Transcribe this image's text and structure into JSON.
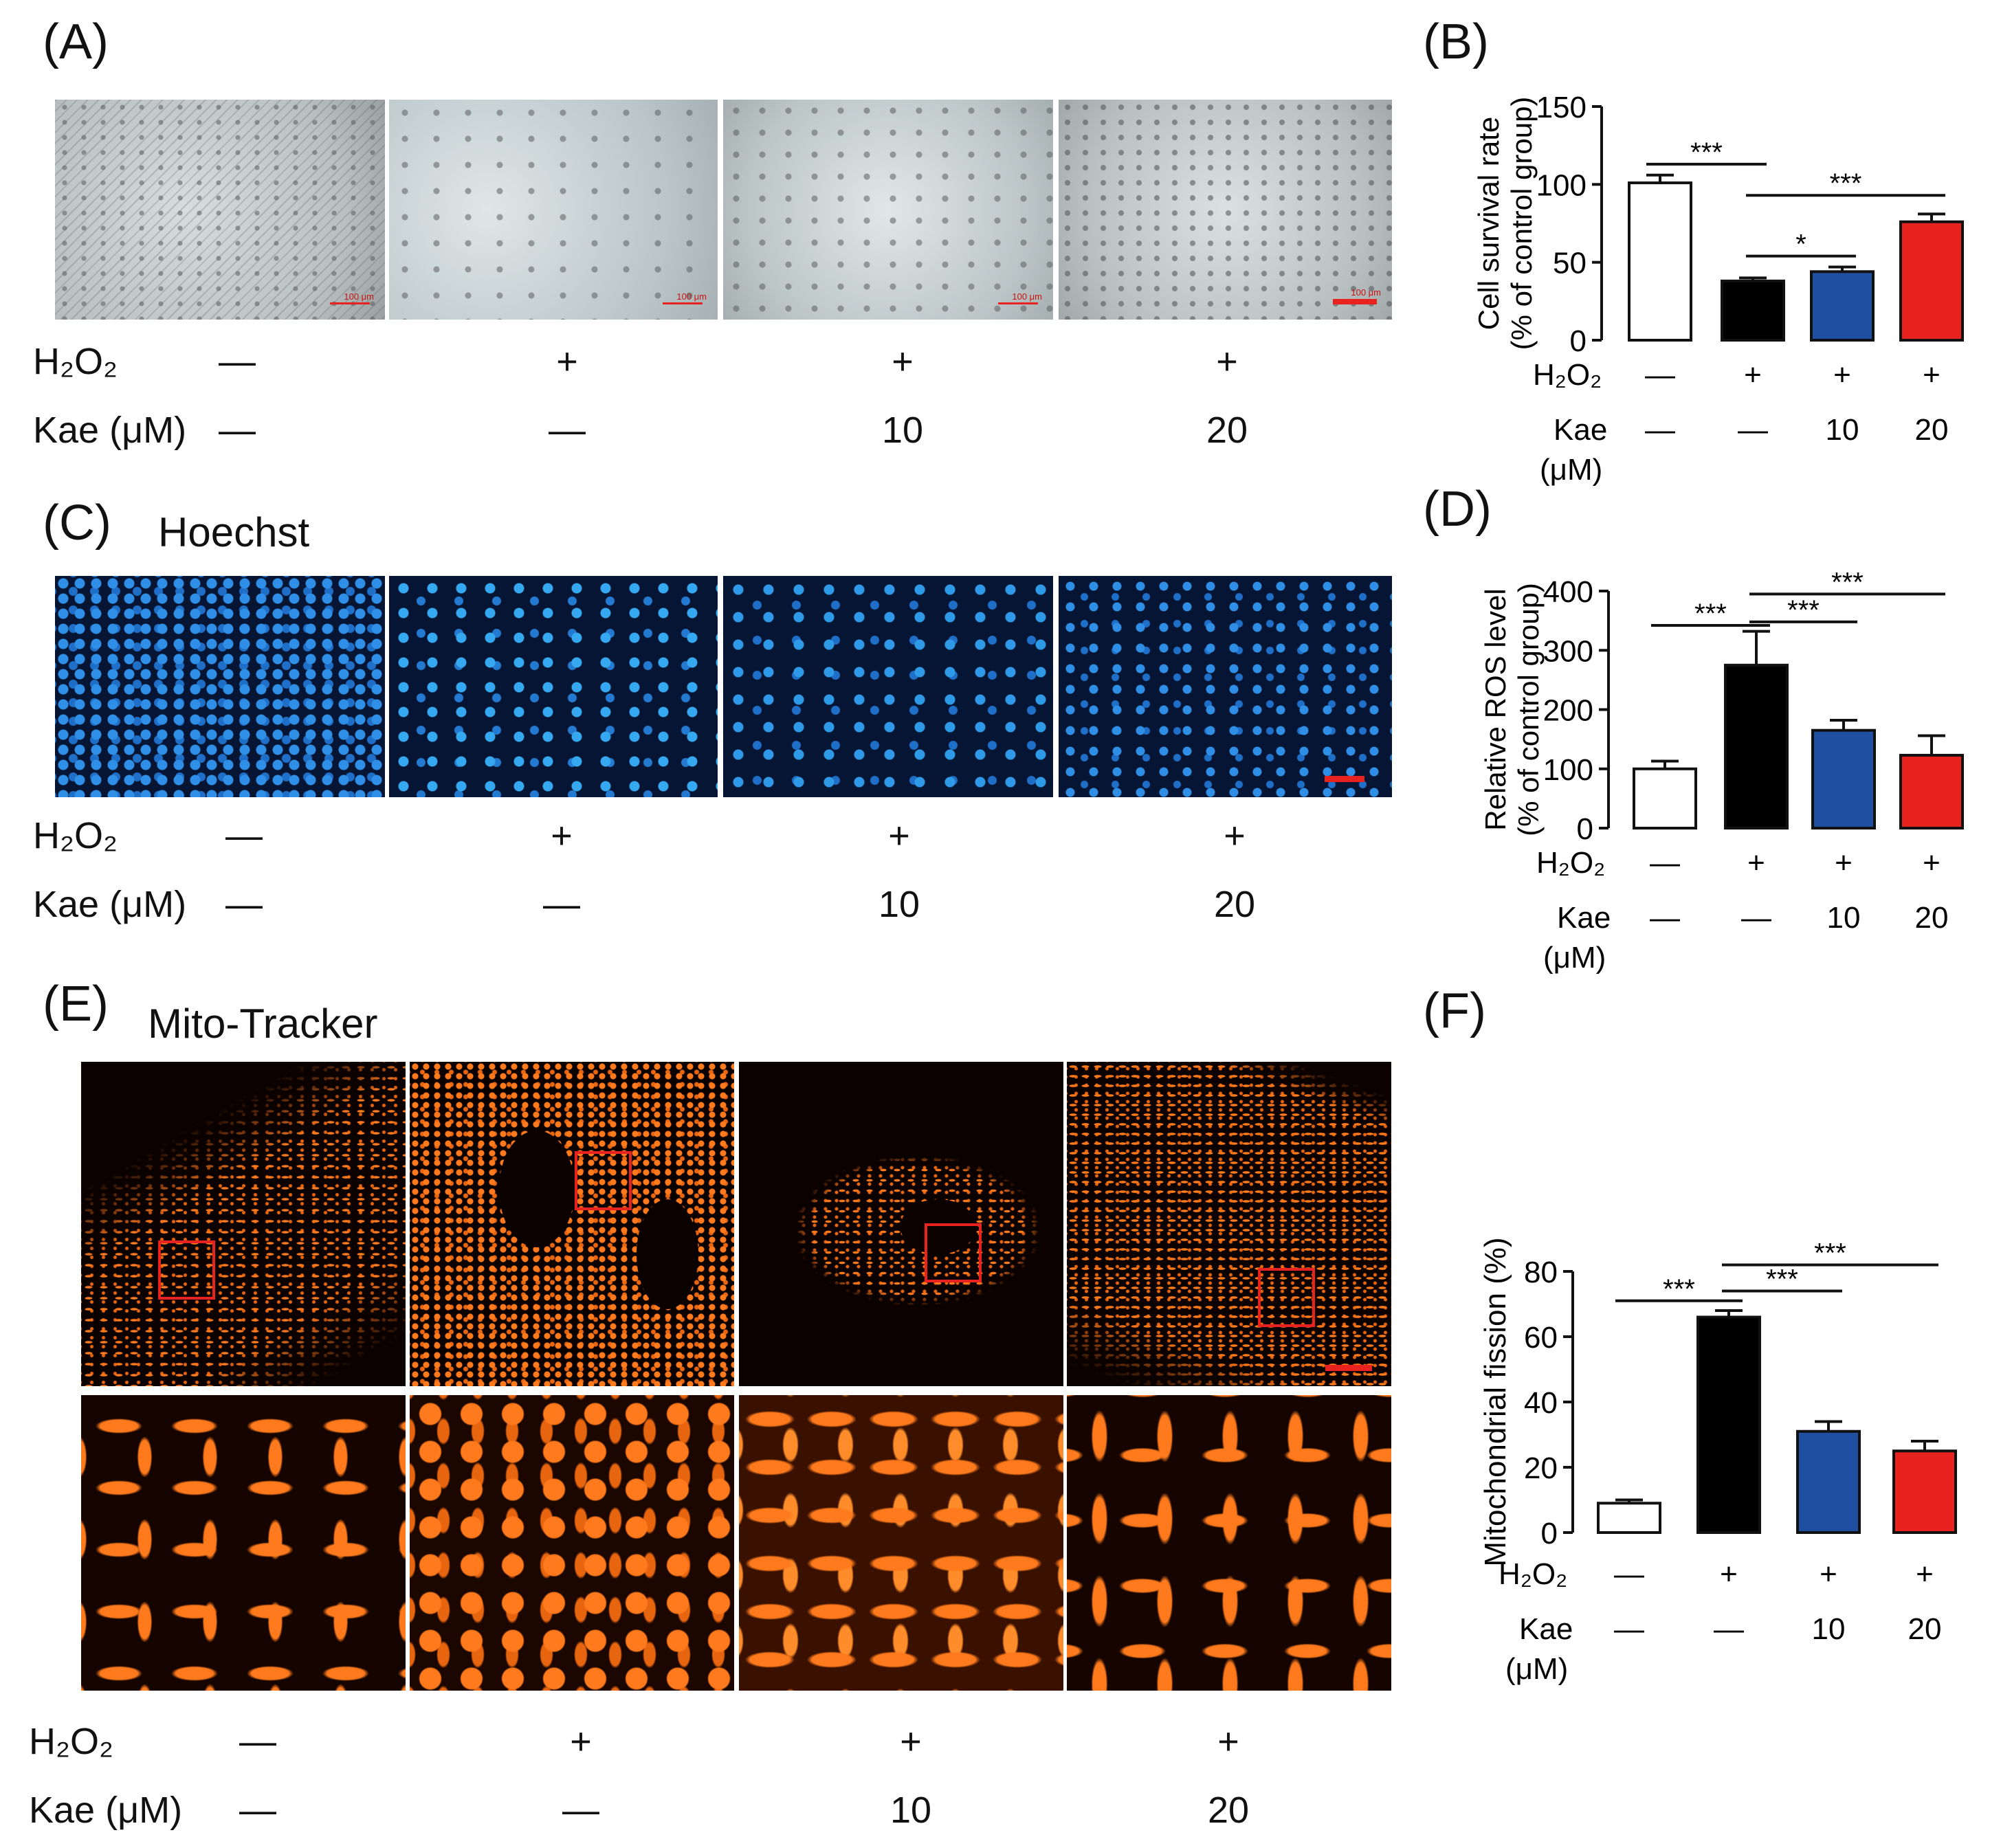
{
  "panels": {
    "A": {
      "label": "(A)",
      "scale_text": "100 μm"
    },
    "B": {
      "label": "(B)"
    },
    "C": {
      "label": "(C)",
      "title": "Hoechst"
    },
    "D": {
      "label": "(D)"
    },
    "E": {
      "label": "(E)",
      "title": "Mito-Tracker"
    },
    "F": {
      "label": "(F)"
    }
  },
  "treatment_labels": {
    "h2o2": "H₂O₂",
    "kae": "Kae (μM)",
    "kae_chart_line1": "Kae",
    "kae_chart_line2": "(μM)"
  },
  "conditions": {
    "h2o2": [
      "—",
      "+",
      "+",
      "+"
    ],
    "kae": [
      "—",
      "—",
      "10",
      "20"
    ]
  },
  "colors": {
    "control": "#ffffff",
    "h2o2": "#000000",
    "kae10": "#1f4fa0",
    "kae20": "#e8221f",
    "scale_bar": "#e8221f"
  },
  "chart_data": [
    {
      "type": "bar",
      "panel": "B",
      "ylabel_line1": "Cell survival rate",
      "ylabel_line2": "(% of control group)",
      "ylim": [
        0,
        150
      ],
      "yticks": [
        0,
        50,
        100,
        150
      ],
      "values": [
        101,
        38,
        44,
        76
      ],
      "errors": [
        5,
        2,
        3,
        5
      ],
      "bar_colors": [
        "#ffffff",
        "#000000",
        "#1f4fa0",
        "#e8221f"
      ],
      "significance": [
        {
          "from": 0,
          "to": 1,
          "label": "***",
          "y": 113
        },
        {
          "from": 1,
          "to": 2,
          "label": "*",
          "y": 54
        },
        {
          "from": 1,
          "to": 3,
          "label": "***",
          "y": 93
        }
      ]
    },
    {
      "type": "bar",
      "panel": "D",
      "ylabel_line1": "Relative ROS level",
      "ylabel_line2": "(% of control group)",
      "ylim": [
        0,
        400
      ],
      "yticks": [
        0,
        100,
        200,
        300,
        400
      ],
      "values": [
        100,
        275,
        165,
        123
      ],
      "errors": [
        13,
        57,
        17,
        33
      ],
      "bar_colors": [
        "#ffffff",
        "#000000",
        "#1f4fa0",
        "#e8221f"
      ],
      "significance": [
        {
          "from": 0,
          "to": 1,
          "label": "***",
          "y": 342
        },
        {
          "from": 1,
          "to": 2,
          "label": "***",
          "y": 348
        },
        {
          "from": 1,
          "to": 3,
          "label": "***",
          "y": 395
        }
      ]
    },
    {
      "type": "bar",
      "panel": "F",
      "ylabel_line1": "Mitochondrial fission (%)",
      "ylabel_line2": "",
      "ylim": [
        0,
        80
      ],
      "yticks": [
        0,
        20,
        40,
        60,
        80
      ],
      "values": [
        9,
        66,
        31,
        25
      ],
      "errors": [
        1,
        2,
        3,
        3
      ],
      "bar_colors": [
        "#ffffff",
        "#000000",
        "#1f4fa0",
        "#e8221f"
      ],
      "significance": [
        {
          "from": 0,
          "to": 1,
          "label": "***",
          "y": 71
        },
        {
          "from": 1,
          "to": 2,
          "label": "***",
          "y": 74
        },
        {
          "from": 1,
          "to": 3,
          "label": "***",
          "y": 82
        }
      ]
    }
  ]
}
